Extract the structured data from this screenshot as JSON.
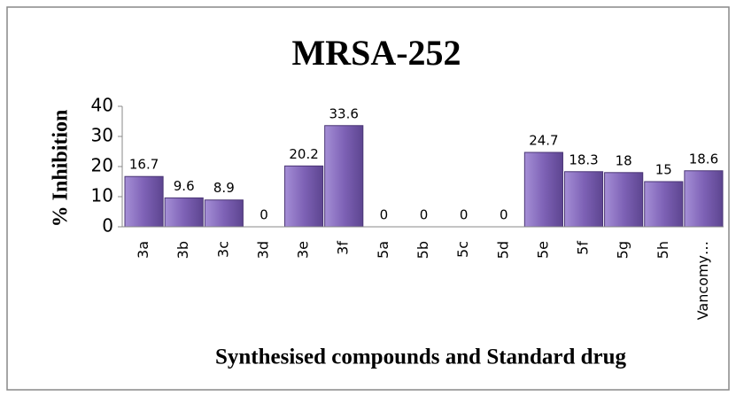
{
  "chart_data": {
    "type": "bar",
    "title": "MRSA-252",
    "y_label": "% Inhibition",
    "x_label": "Synthesised compounds and Standard drug",
    "categories": [
      "3a",
      "3b",
      "3c",
      "3d",
      "3e",
      "3f",
      "5a",
      "5b",
      "5c",
      "5d",
      "5e",
      "5f",
      "5g",
      "5h",
      "Vancomy…"
    ],
    "values": [
      16.7,
      9.6,
      8.9,
      0,
      20.2,
      33.6,
      0,
      0,
      0,
      0,
      24.7,
      18.3,
      18,
      15,
      18.6
    ],
    "color": "#7e62b6",
    "ylim": [
      0,
      40
    ],
    "yticks": [
      0,
      10,
      20,
      30,
      40
    ],
    "grid": false
  }
}
